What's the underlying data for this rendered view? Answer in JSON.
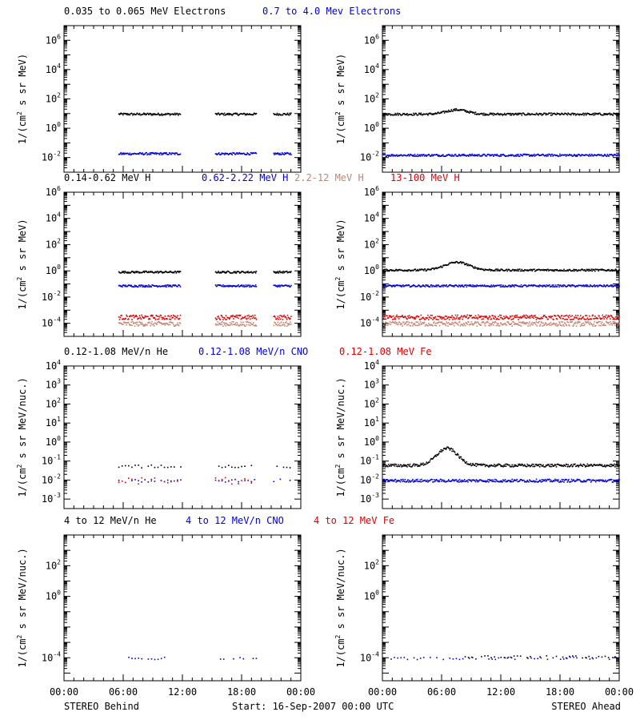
{
  "colors": {
    "black": "#000000",
    "blue": "#0000dd",
    "salmon": "#c8826e",
    "red": "#dd0000"
  },
  "footer": {
    "left": "STEREO Behind",
    "center": "Start: 16-Sep-2007 00:00 UTC",
    "right": "STEREO Ahead"
  },
  "x_ticks": [
    "00:00",
    "06:00",
    "12:00",
    "18:00",
    "00:00"
  ],
  "rows": [
    {
      "legend": [
        {
          "text": "0.035 to 0.065 MeV Electrons",
          "color": "black"
        },
        {
          "text": "0.7 to 4.0 Mev Electrons",
          "color": "blue"
        }
      ],
      "ylabel_pre": "1/(cm",
      "ylabel_sup": "2",
      "ylabel_post": " s sr MeV)",
      "ylog": [
        -3,
        7
      ],
      "yticks": [
        {
          "base": "10",
          "exp": "-2",
          "value": -2
        },
        {
          "base": "10",
          "exp": "0",
          "value": 0
        },
        {
          "base": "10",
          "exp": "2",
          "value": 2
        },
        {
          "base": "10",
          "exp": "4",
          "value": 4
        },
        {
          "base": "10",
          "exp": "6",
          "value": 6
        }
      ]
    },
    {
      "legend": [
        {
          "text": "0.14-0.62 MeV H",
          "color": "black"
        },
        {
          "text": "0.62-2.22 MeV H",
          "color": "blue"
        },
        {
          "text": "2.2-12 MeV H",
          "color": "salmon"
        },
        {
          "text": "13-100 MeV H",
          "color": "red"
        }
      ],
      "ylabel_pre": "1/(cm",
      "ylabel_sup": "2",
      "ylabel_post": " s sr MeV)",
      "ylog": [
        -5,
        6
      ],
      "yticks": [
        {
          "base": "10",
          "exp": "-4",
          "value": -4
        },
        {
          "base": "10",
          "exp": "-2",
          "value": -2
        },
        {
          "base": "10",
          "exp": "0",
          "value": 0
        },
        {
          "base": "10",
          "exp": "2",
          "value": 2
        },
        {
          "base": "10",
          "exp": "4",
          "value": 4
        },
        {
          "base": "10",
          "exp": "6",
          "value": 6
        }
      ]
    },
    {
      "legend": [
        {
          "text": "0.12-1.08 MeV/n He",
          "color": "black"
        },
        {
          "text": "0.12-1.08 MeV/n CNO",
          "color": "blue"
        },
        {
          "text": "0.12-1.08 MeV Fe",
          "color": "red"
        }
      ],
      "ylabel_pre": "1/(cm",
      "ylabel_sup": "2",
      "ylabel_post": " s sr MeV/nuc.)",
      "ylog": [
        -3.5,
        4
      ],
      "yticks": [
        {
          "base": "10",
          "exp": "-3",
          "value": -3
        },
        {
          "base": "10",
          "exp": "-2",
          "value": -2
        },
        {
          "base": "10",
          "exp": "-1",
          "value": -1
        },
        {
          "base": "10",
          "exp": "0",
          "value": 0
        },
        {
          "base": "10",
          "exp": "1",
          "value": 1
        },
        {
          "base": "10",
          "exp": "2",
          "value": 2
        },
        {
          "base": "10",
          "exp": "3",
          "value": 3
        },
        {
          "base": "10",
          "exp": "4",
          "value": 4
        }
      ]
    },
    {
      "legend": [
        {
          "text": "4 to 12 MeV/n He",
          "color": "black"
        },
        {
          "text": "4 to 12 MeV/n CNO",
          "color": "blue"
        },
        {
          "text": "4 to 12 MeV Fe",
          "color": "red"
        }
      ],
      "ylabel_pre": "1/(cm",
      "ylabel_sup": "2",
      "ylabel_post": " s sr MeV/nuc.)",
      "ylog": [
        -5.5,
        4
      ],
      "yticks": [
        {
          "base": "10",
          "exp": "-4",
          "value": -4
        },
        {
          "base": "10",
          "exp": "0",
          "value": 0
        },
        {
          "base": "10",
          "exp": "2",
          "value": 2
        }
      ]
    }
  ],
  "chart_data": [
    {
      "type": "scatter",
      "panel": "Behind electrons",
      "x_unit": "hours",
      "xlim": [
        0,
        24
      ],
      "ylim_log10": [
        -3,
        7
      ],
      "series": [
        {
          "color": "black",
          "segments": [
            {
              "x": [
                5.5,
                11.8
              ],
              "log10y": 1.0
            },
            {
              "x": [
                15.3,
                19.5
              ],
              "log10y": 1.0
            },
            {
              "x": [
                21.2,
                23.0
              ],
              "log10y": 1.0
            }
          ]
        },
        {
          "color": "blue",
          "segments": [
            {
              "x": [
                5.5,
                11.8
              ],
              "log10y": -1.7
            },
            {
              "x": [
                15.3,
                19.5
              ],
              "log10y": -1.7
            },
            {
              "x": [
                21.2,
                23.0
              ],
              "log10y": -1.7
            }
          ]
        }
      ]
    },
    {
      "type": "scatter",
      "panel": "Ahead electrons",
      "x_unit": "hours",
      "xlim": [
        0,
        24
      ],
      "ylim_log10": [
        -3,
        7
      ],
      "series": [
        {
          "color": "black",
          "segments": [
            {
              "x": [
                0,
                24
              ],
              "log10y": 1.0,
              "bump": {
                "center": 7.5,
                "height": 0.3,
                "width": 3
              }
            }
          ]
        },
        {
          "color": "blue",
          "segments": [
            {
              "x": [
                0,
                24
              ],
              "log10y": -1.8
            }
          ]
        }
      ]
    },
    {
      "type": "scatter",
      "panel": "Behind protons",
      "x_unit": "hours",
      "xlim": [
        0,
        24
      ],
      "ylim_log10": [
        -5,
        6
      ],
      "series": [
        {
          "color": "black",
          "segments": [
            {
              "x": [
                5.5,
                11.8
              ],
              "log10y": -0.05
            },
            {
              "x": [
                15.3,
                19.5
              ],
              "log10y": -0.05
            },
            {
              "x": [
                21.2,
                23.0
              ],
              "log10y": -0.05
            }
          ]
        },
        {
          "color": "blue",
          "segments": [
            {
              "x": [
                5.5,
                11.8
              ],
              "log10y": -1.1
            },
            {
              "x": [
                15.3,
                19.5
              ],
              "log10y": -1.1
            },
            {
              "x": [
                21.2,
                23.0
              ],
              "log10y": -1.1
            }
          ]
        },
        {
          "color": "salmon",
          "segments": [
            {
              "x": [
                5.5,
                11.8
              ],
              "log10y": -4.0
            },
            {
              "x": [
                15.3,
                19.5
              ],
              "log10y": -4.0
            },
            {
              "x": [
                21.2,
                23.0
              ],
              "log10y": -4.0
            }
          ]
        },
        {
          "color": "red",
          "segments": [
            {
              "x": [
                5.5,
                11.8
              ],
              "log10y": -3.5
            },
            {
              "x": [
                15.3,
                19.5
              ],
              "log10y": -3.5
            },
            {
              "x": [
                21.2,
                23.0
              ],
              "log10y": -3.5
            }
          ]
        }
      ]
    },
    {
      "type": "scatter",
      "panel": "Ahead protons",
      "x_unit": "hours",
      "xlim": [
        0,
        24
      ],
      "ylim_log10": [
        -5,
        6
      ],
      "series": [
        {
          "color": "black",
          "segments": [
            {
              "x": [
                0,
                24
              ],
              "log10y": 0.1,
              "bump": {
                "center": 7.5,
                "height": 0.6,
                "width": 3.5
              }
            }
          ]
        },
        {
          "color": "blue",
          "segments": [
            {
              "x": [
                0,
                24
              ],
              "log10y": -1.1
            }
          ]
        },
        {
          "color": "salmon",
          "segments": [
            {
              "x": [
                0,
                24
              ],
              "log10y": -4.0
            }
          ]
        },
        {
          "color": "red",
          "segments": [
            {
              "x": [
                0,
                24
              ],
              "log10y": -3.5
            }
          ]
        }
      ]
    },
    {
      "type": "scatter",
      "panel": "Behind 0.12-1.08 MeV/n",
      "x_unit": "hours",
      "xlim": [
        0,
        24
      ],
      "ylim_log10": [
        -3.5,
        4
      ],
      "series": [
        {
          "color": "black",
          "segments": [
            {
              "x": [
                5.5,
                11.8
              ],
              "log10y": -1.25,
              "sparse": true
            },
            {
              "x": [
                15.3,
                19.5
              ],
              "log10y": -1.25,
              "sparse": true
            },
            {
              "x": [
                21.2,
                23.0
              ],
              "log10y": -1.25,
              "sparse": true
            }
          ]
        },
        {
          "color": "blue",
          "segments": [
            {
              "x": [
                5.5,
                11.8
              ],
              "log10y": -2.0,
              "sparse": true
            },
            {
              "x": [
                15.3,
                19.5
              ],
              "log10y": -2.0,
              "sparse": true
            },
            {
              "x": [
                21.2,
                23.0
              ],
              "log10y": -2.0,
              "sparse": true
            }
          ]
        },
        {
          "color": "red",
          "segments": [
            {
              "x": [
                5.5,
                11.8
              ],
              "log10y": -2.0,
              "sparse": true
            },
            {
              "x": [
                15.3,
                19.5
              ],
              "log10y": -2.0,
              "sparse": true
            }
          ]
        }
      ]
    },
    {
      "type": "scatter",
      "panel": "Ahead 0.12-1.08 MeV/n",
      "x_unit": "hours",
      "xlim": [
        0,
        24
      ],
      "ylim_log10": [
        -3.5,
        4
      ],
      "series": [
        {
          "color": "black",
          "segments": [
            {
              "x": [
                0,
                24
              ],
              "log10y": -1.2,
              "bump": {
                "center": 6.5,
                "height": 0.9,
                "width": 3
              }
            }
          ]
        },
        {
          "color": "blue",
          "segments": [
            {
              "x": [
                0,
                24
              ],
              "log10y": -2.0
            }
          ]
        }
      ]
    },
    {
      "type": "scatter",
      "panel": "Behind 4-12 MeV/n",
      "x_unit": "hours",
      "xlim": [
        0,
        24
      ],
      "ylim_log10": [
        -5.5,
        4
      ],
      "series": [
        {
          "color": "blue",
          "segments": [
            {
              "x": [
                6.5,
                10.2
              ],
              "log10y": -4.0,
              "sparse": true
            },
            {
              "x": [
                15.8,
                19.5
              ],
              "log10y": -4.0,
              "sparse": true
            }
          ]
        }
      ]
    },
    {
      "type": "scatter",
      "panel": "Ahead 4-12 MeV/n",
      "x_unit": "hours",
      "xlim": [
        0,
        24
      ],
      "ylim_log10": [
        -5.5,
        4
      ],
      "series": [
        {
          "color": "blue",
          "segments": [
            {
              "x": [
                0.5,
                24
              ],
              "log10y": -4.0,
              "sparse": true
            }
          ]
        },
        {
          "color": "black",
          "segments": [
            {
              "x": [
                8,
                24
              ],
              "log10y": -3.9,
              "sparse": true
            }
          ]
        }
      ]
    }
  ]
}
